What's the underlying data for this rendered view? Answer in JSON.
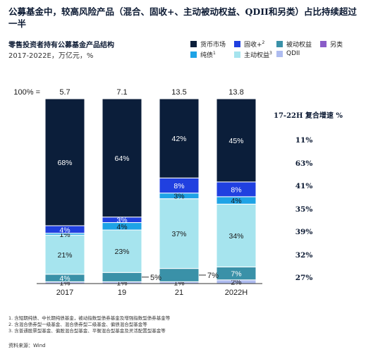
{
  "title": "公募基金中，较高风险产品（混合、固收+、主动被动权益、QDII和另类）占比持续超过一半",
  "subtitle": "零售投资者持有公募基金产品结构",
  "subtitle2": "2017-2022E，万亿元，%",
  "legend": [
    {
      "label": "货币市场",
      "sup": "",
      "color": "#0b1e3a"
    },
    {
      "label": "固收+",
      "sup": "2",
      "color": "#2040e0"
    },
    {
      "label": "被动权益",
      "sup": "",
      "color": "#3a91a8"
    },
    {
      "label": "另类",
      "sup": "",
      "color": "#8a5cc8"
    },
    {
      "label": "纯债",
      "sup": "1",
      "color": "#1ea3e6"
    },
    {
      "label": "主动权益",
      "sup": "3",
      "color": "#a6e4ee"
    },
    {
      "label": "QDII",
      "sup": "",
      "color": "#aebcf0"
    }
  ],
  "chart_data": {
    "type": "bar",
    "stacked": true,
    "normalized": true,
    "categories": [
      "2017",
      "19",
      "21",
      "2022H"
    ],
    "totals": [
      "5.7",
      "7.1",
      "13.5",
      "13.8"
    ],
    "total_prefix": "100% =",
    "series": [
      {
        "name": "QDII",
        "color": "#aebcf0",
        "values": [
          1,
          1,
          1,
          2
        ],
        "labels": [
          "1%",
          "1%",
          "1%",
          "2%"
        ]
      },
      {
        "name": "被动权益",
        "color": "#3a91a8",
        "values": [
          4,
          5,
          7,
          7
        ],
        "labels": [
          "4%",
          "",
          "",
          "7%"
        ]
      },
      {
        "name": "主动权益",
        "color": "#a6e4ee",
        "values": [
          21,
          23,
          37,
          34
        ],
        "labels": [
          "21%",
          "23%",
          "37%",
          "34%"
        ]
      },
      {
        "name": "纯债",
        "color": "#1ea3e6",
        "values": [
          1,
          4,
          3,
          4
        ],
        "labels": [
          "1%",
          "4%",
          "3%",
          "4%"
        ]
      },
      {
        "name": "固收+",
        "color": "#2040e0",
        "values": [
          4,
          3,
          8,
          8
        ],
        "labels": [
          "4%",
          "3%",
          "8%",
          "8%"
        ]
      },
      {
        "name": "货币市场",
        "color": "#0b1e3a",
        "values": [
          68,
          64,
          42,
          45
        ],
        "labels": [
          "68%",
          "64%",
          "42%",
          "45%"
        ]
      }
    ],
    "callouts": [
      {
        "category_index": 1,
        "label": "5%"
      },
      {
        "category_index": 2,
        "label": "7%"
      }
    ],
    "ylim": [
      0,
      100
    ],
    "xlabel": "",
    "ylabel": ""
  },
  "cagr": {
    "title": "17-22H 复合增速 %",
    "values": [
      "11%",
      "63%",
      "41%",
      "35%",
      "39%",
      "32%",
      "27%"
    ]
  },
  "notes": [
    "1. 含短期纯债、中长期纯债基金，被动指数型债券基金及增强指数型债券基金等",
    "2. 含混合债券型一级基金、混合债券型二级基金、偏债混合型基金等",
    "3. 含普通股票型基金、偏股混合型基金、平衡混合型基金及灵活配置型基金等"
  ],
  "source": "资料来源：Wind"
}
